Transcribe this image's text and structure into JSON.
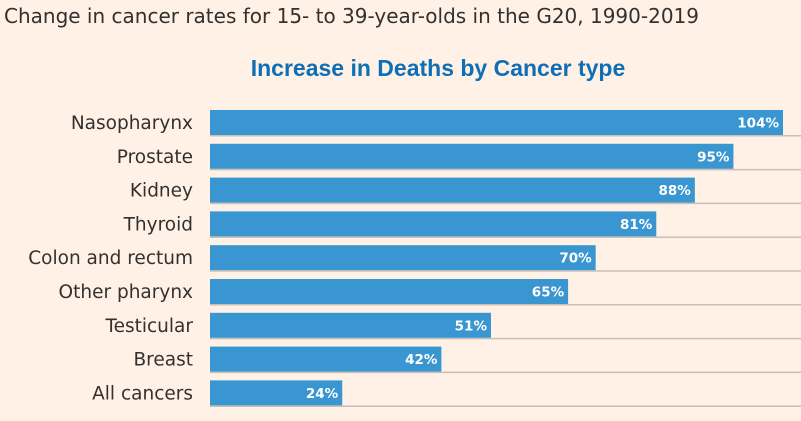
{
  "header": {
    "title": "Change in cancer rates for 15- to 39-year-olds in the G20, 1990-2019"
  },
  "chart_data": {
    "type": "bar",
    "orientation": "horizontal",
    "title": "Increase in Deaths by Cancer type",
    "categories": [
      "Nasopharynx",
      "Prostate",
      "Kidney",
      "Thyroid",
      "Colon and rectum",
      "Other pharynx",
      "Testicular",
      "Breast",
      "All cancers"
    ],
    "values": [
      104,
      95,
      88,
      81,
      70,
      65,
      51,
      42,
      24
    ],
    "value_labels": [
      "104%",
      "95%",
      "88%",
      "81%",
      "70%",
      "65%",
      "51%",
      "42%",
      "24%"
    ],
    "unit": "%",
    "xlim": [
      0,
      104
    ],
    "xlabel": "",
    "ylabel": "",
    "grid": false,
    "legend": "none",
    "colors": {
      "bar": "#3a96d0",
      "divider": "#c8c0b8",
      "title": "#0f6fb6",
      "background": "#fff1e5"
    }
  }
}
